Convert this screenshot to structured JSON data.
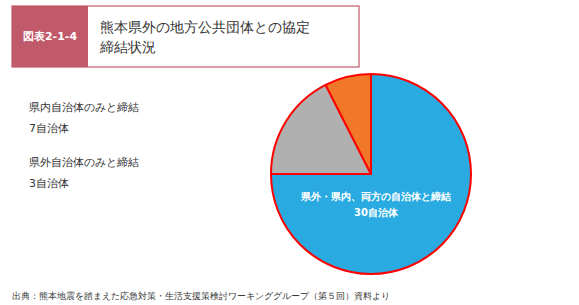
{
  "chart_data": {
    "type": "pie",
    "figure_label": "図表2-1-4",
    "title": "熊本県外の地方公共団体との協定\n締結状況",
    "categories": [
      "県外・県内、両方の自治体と締結",
      "県内自治体のみと締結",
      "県外自治体のみと締結"
    ],
    "values": [
      30,
      7,
      3
    ],
    "value_labels": [
      "30自治体",
      "7自治体",
      "3自治体"
    ],
    "colors": [
      "#29abe2",
      "#b0b0b0",
      "#f07828"
    ],
    "edge_color": "#ff0000",
    "header_color": "#c0596a",
    "text_color": "#333333",
    "source": "出典：熊本地震を踏まえた応急対策・生活支援策検討ワーキンググループ（第５回）資料より"
  }
}
